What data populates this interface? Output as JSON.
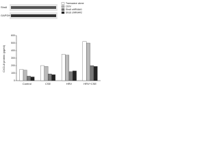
{
  "blot": {
    "rows": [
      "Shs6",
      "GAPDH"
    ]
  },
  "chart_data": {
    "type": "bar",
    "y_label": "CXCL8 protein (pg/ml)",
    "categories": [
      "Control",
      "CSE",
      "HRV",
      "HRV+CSE"
    ],
    "series": [
      {
        "name": "Transwave alone",
        "color": "#ffffff",
        "values": [
          150,
          200,
          350,
          520
        ]
      },
      {
        "name": "CtrlV",
        "color": "#bbbbbb",
        "values": [
          140,
          190,
          340,
          500
        ]
      },
      {
        "name": "Shs6 shRNA#1",
        "color": "#777777",
        "values": [
          60,
          90,
          120,
          200
        ]
      },
      {
        "name": "Shs6 shRNA#2",
        "color": "#222222",
        "values": [
          50,
          80,
          130,
          190
        ]
      }
    ],
    "ylim": [
      0,
      600
    ],
    "yticks": [
      0,
      100,
      200,
      300,
      400,
      500,
      600
    ]
  }
}
